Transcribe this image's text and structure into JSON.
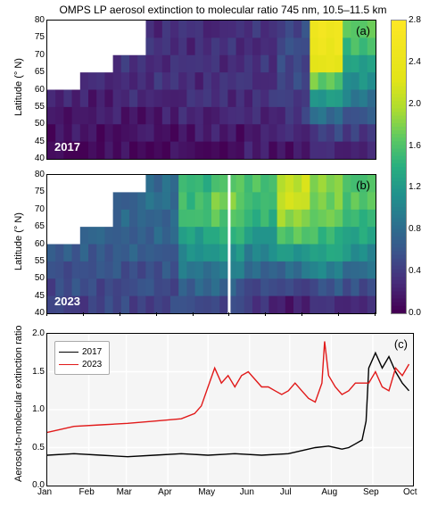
{
  "title": "OMPS LP aerosol extinction to molecular ratio 745 nm, 10.5–11.5 km",
  "panel_a": {
    "type": "heatmap",
    "label": "(a)",
    "year": "2017",
    "year_color": "#ffffff",
    "ylabel": "Latitude (° N)",
    "ylim": [
      40,
      80
    ],
    "ytick_step": 5,
    "yticks": [
      40,
      45,
      50,
      55,
      60,
      65,
      70,
      75,
      80
    ],
    "xlim_months": [
      "Jan",
      "Feb",
      "Mar",
      "Apr",
      "May",
      "Jun",
      "Jul",
      "Aug",
      "Sep",
      "Oct"
    ],
    "data_bands": {
      "comment": "approximate per-row (lat) and per-month (x) mean values read from colormap",
      "lat_rows": [
        80,
        75,
        70,
        65,
        60,
        55,
        50,
        45,
        40
      ],
      "by_month": {
        "Jan": [
          null,
          null,
          null,
          null,
          0.2,
          0.2,
          0.1,
          0.1,
          0.0
        ],
        "Feb": [
          null,
          null,
          null,
          0.3,
          0.2,
          0.2,
          0.1,
          0.1,
          0.0
        ],
        "Mar": [
          null,
          null,
          0.3,
          0.3,
          0.3,
          0.2,
          0.1,
          0.1,
          0.0
        ],
        "Apr": [
          0.3,
          0.3,
          0.3,
          0.3,
          0.3,
          0.2,
          0.1,
          0.1,
          0.0
        ],
        "May": [
          0.3,
          0.3,
          0.3,
          0.3,
          0.3,
          0.3,
          0.2,
          0.1,
          0.0
        ],
        "Jun": [
          0.3,
          0.3,
          0.3,
          0.3,
          0.3,
          0.3,
          0.2,
          0.1,
          0.0
        ],
        "Jul": [
          0.3,
          0.3,
          0.3,
          0.3,
          0.3,
          0.3,
          0.2,
          0.2,
          0.1
        ],
        "Aug": [
          0.5,
          0.5,
          0.5,
          0.5,
          0.4,
          0.4,
          0.3,
          0.2,
          0.1
        ],
        "Sep": [
          2.6,
          2.4,
          2.6,
          2.0,
          1.4,
          1.0,
          0.6,
          0.3,
          0.2
        ],
        "Oct": [
          1.8,
          1.6,
          1.4,
          1.2,
          1.0,
          0.8,
          0.4,
          0.3,
          0.2
        ]
      }
    }
  },
  "panel_b": {
    "type": "heatmap",
    "label": "(b)",
    "year": "2023",
    "year_color": "#ffffff",
    "ylabel": "Latitude (° N)",
    "ylim": [
      40,
      80
    ],
    "ytick_step": 5,
    "yticks": [
      40,
      45,
      50,
      55,
      60,
      65,
      70,
      75,
      80
    ],
    "xlim_months": [
      "Jan",
      "Feb",
      "Mar",
      "Apr",
      "May",
      "Jun",
      "Jul",
      "Aug",
      "Sep",
      "Oct"
    ],
    "data_bands": {
      "lat_rows": [
        80,
        75,
        70,
        65,
        60,
        55,
        50,
        45,
        40
      ],
      "by_month": {
        "Jan": [
          null,
          null,
          null,
          null,
          0.6,
          0.6,
          0.5,
          0.5,
          0.4
        ],
        "Feb": [
          null,
          null,
          null,
          0.7,
          0.7,
          0.6,
          0.5,
          0.5,
          0.4
        ],
        "Mar": [
          null,
          0.7,
          0.7,
          0.7,
          0.7,
          0.6,
          0.5,
          0.5,
          0.4
        ],
        "Apr": [
          0.8,
          0.8,
          0.8,
          0.7,
          0.7,
          0.6,
          0.5,
          0.5,
          0.4
        ],
        "May": [
          1.4,
          1.5,
          1.6,
          1.4,
          1.2,
          1.0,
          0.8,
          0.6,
          0.4
        ],
        "Jun": [
          1.6,
          1.7,
          1.8,
          1.5,
          1.3,
          1.1,
          0.8,
          0.6,
          0.4
        ],
        "Jul": [
          1.5,
          1.6,
          1.5,
          1.3,
          1.1,
          0.9,
          0.6,
          0.4,
          0.2
        ],
        "Aug": [
          2.0,
          2.2,
          2.0,
          1.8,
          1.4,
          1.0,
          0.6,
          0.3,
          0.1
        ],
        "Sep": [
          1.8,
          1.8,
          1.8,
          1.6,
          1.4,
          1.2,
          0.8,
          0.4,
          0.2
        ],
        "Oct": [
          1.6,
          1.6,
          1.6,
          1.4,
          1.2,
          1.0,
          0.6,
          0.4,
          0.2
        ]
      }
    }
  },
  "panel_c": {
    "type": "line",
    "label": "(c)",
    "ylabel": "Aerosol-to-molecular extinction ratio",
    "ylim": [
      0,
      2.0
    ],
    "ytick_step": 0.5,
    "yticks": [
      0.0,
      0.5,
      1.0,
      1.5,
      2.0
    ],
    "xticks": [
      "Jan",
      "Feb",
      "Mar",
      "Apr",
      "May",
      "Jun",
      "Jul",
      "Aug",
      "Sep",
      "Oct"
    ],
    "grid_color": "#ffffff",
    "background_color": "#f0f0f0",
    "series": [
      {
        "name": "2017",
        "color": "#000000",
        "line_width": 1.4,
        "x_days": [
          0,
          20,
          40,
          60,
          80,
          100,
          120,
          140,
          160,
          180,
          200,
          210,
          220,
          225,
          230,
          235,
          238,
          240,
          245,
          250,
          255,
          260,
          265,
          270
        ],
        "y": [
          0.4,
          0.42,
          0.4,
          0.38,
          0.4,
          0.42,
          0.4,
          0.42,
          0.4,
          0.42,
          0.5,
          0.52,
          0.48,
          0.5,
          0.55,
          0.6,
          0.85,
          1.55,
          1.75,
          1.55,
          1.7,
          1.5,
          1.35,
          1.25
        ]
      },
      {
        "name": "2023",
        "color": "#e11919",
        "line_width": 1.4,
        "x_days": [
          0,
          20,
          40,
          60,
          80,
          100,
          110,
          115,
          120,
          125,
          130,
          135,
          140,
          145,
          150,
          155,
          160,
          165,
          170,
          175,
          180,
          185,
          190,
          195,
          200,
          205,
          207,
          210,
          215,
          220,
          225,
          230,
          235,
          240,
          245,
          250,
          255,
          260,
          265,
          270
        ],
        "y": [
          0.7,
          0.78,
          0.8,
          0.82,
          0.85,
          0.88,
          0.95,
          1.05,
          1.3,
          1.55,
          1.35,
          1.45,
          1.3,
          1.45,
          1.5,
          1.4,
          1.3,
          1.3,
          1.25,
          1.2,
          1.25,
          1.35,
          1.25,
          1.15,
          1.1,
          1.35,
          1.9,
          1.45,
          1.3,
          1.2,
          1.25,
          1.35,
          1.35,
          1.35,
          1.5,
          1.3,
          1.25,
          1.55,
          1.45,
          1.6
        ]
      }
    ],
    "legend": {
      "position": "upper-left",
      "border_color": "#aaaaaa",
      "items": [
        {
          "label": "2017",
          "color": "#000000"
        },
        {
          "label": "2023",
          "color": "#e11919"
        }
      ]
    }
  },
  "colorbar": {
    "vmin": 0.0,
    "vmax": 2.8,
    "ticks": [
      0.0,
      0.4,
      0.8,
      1.2,
      1.6,
      2.0,
      2.4,
      2.8
    ],
    "stops": [
      {
        "value": 0.0,
        "color": "#440154"
      },
      {
        "value": 0.28,
        "color": "#472c7a"
      },
      {
        "value": 0.56,
        "color": "#3b528b"
      },
      {
        "value": 0.84,
        "color": "#2c718e"
      },
      {
        "value": 1.12,
        "color": "#21908d"
      },
      {
        "value": 1.4,
        "color": "#28ae80"
      },
      {
        "value": 1.68,
        "color": "#5ec962"
      },
      {
        "value": 1.96,
        "color": "#addc30"
      },
      {
        "value": 2.24,
        "color": "#e2e418"
      },
      {
        "value": 2.8,
        "color": "#fde725"
      }
    ]
  },
  "style": {
    "title_fontsize": 12,
    "label_fontsize": 11,
    "tick_fontsize": 10,
    "heatmap_missing_color": "#ffffff"
  }
}
